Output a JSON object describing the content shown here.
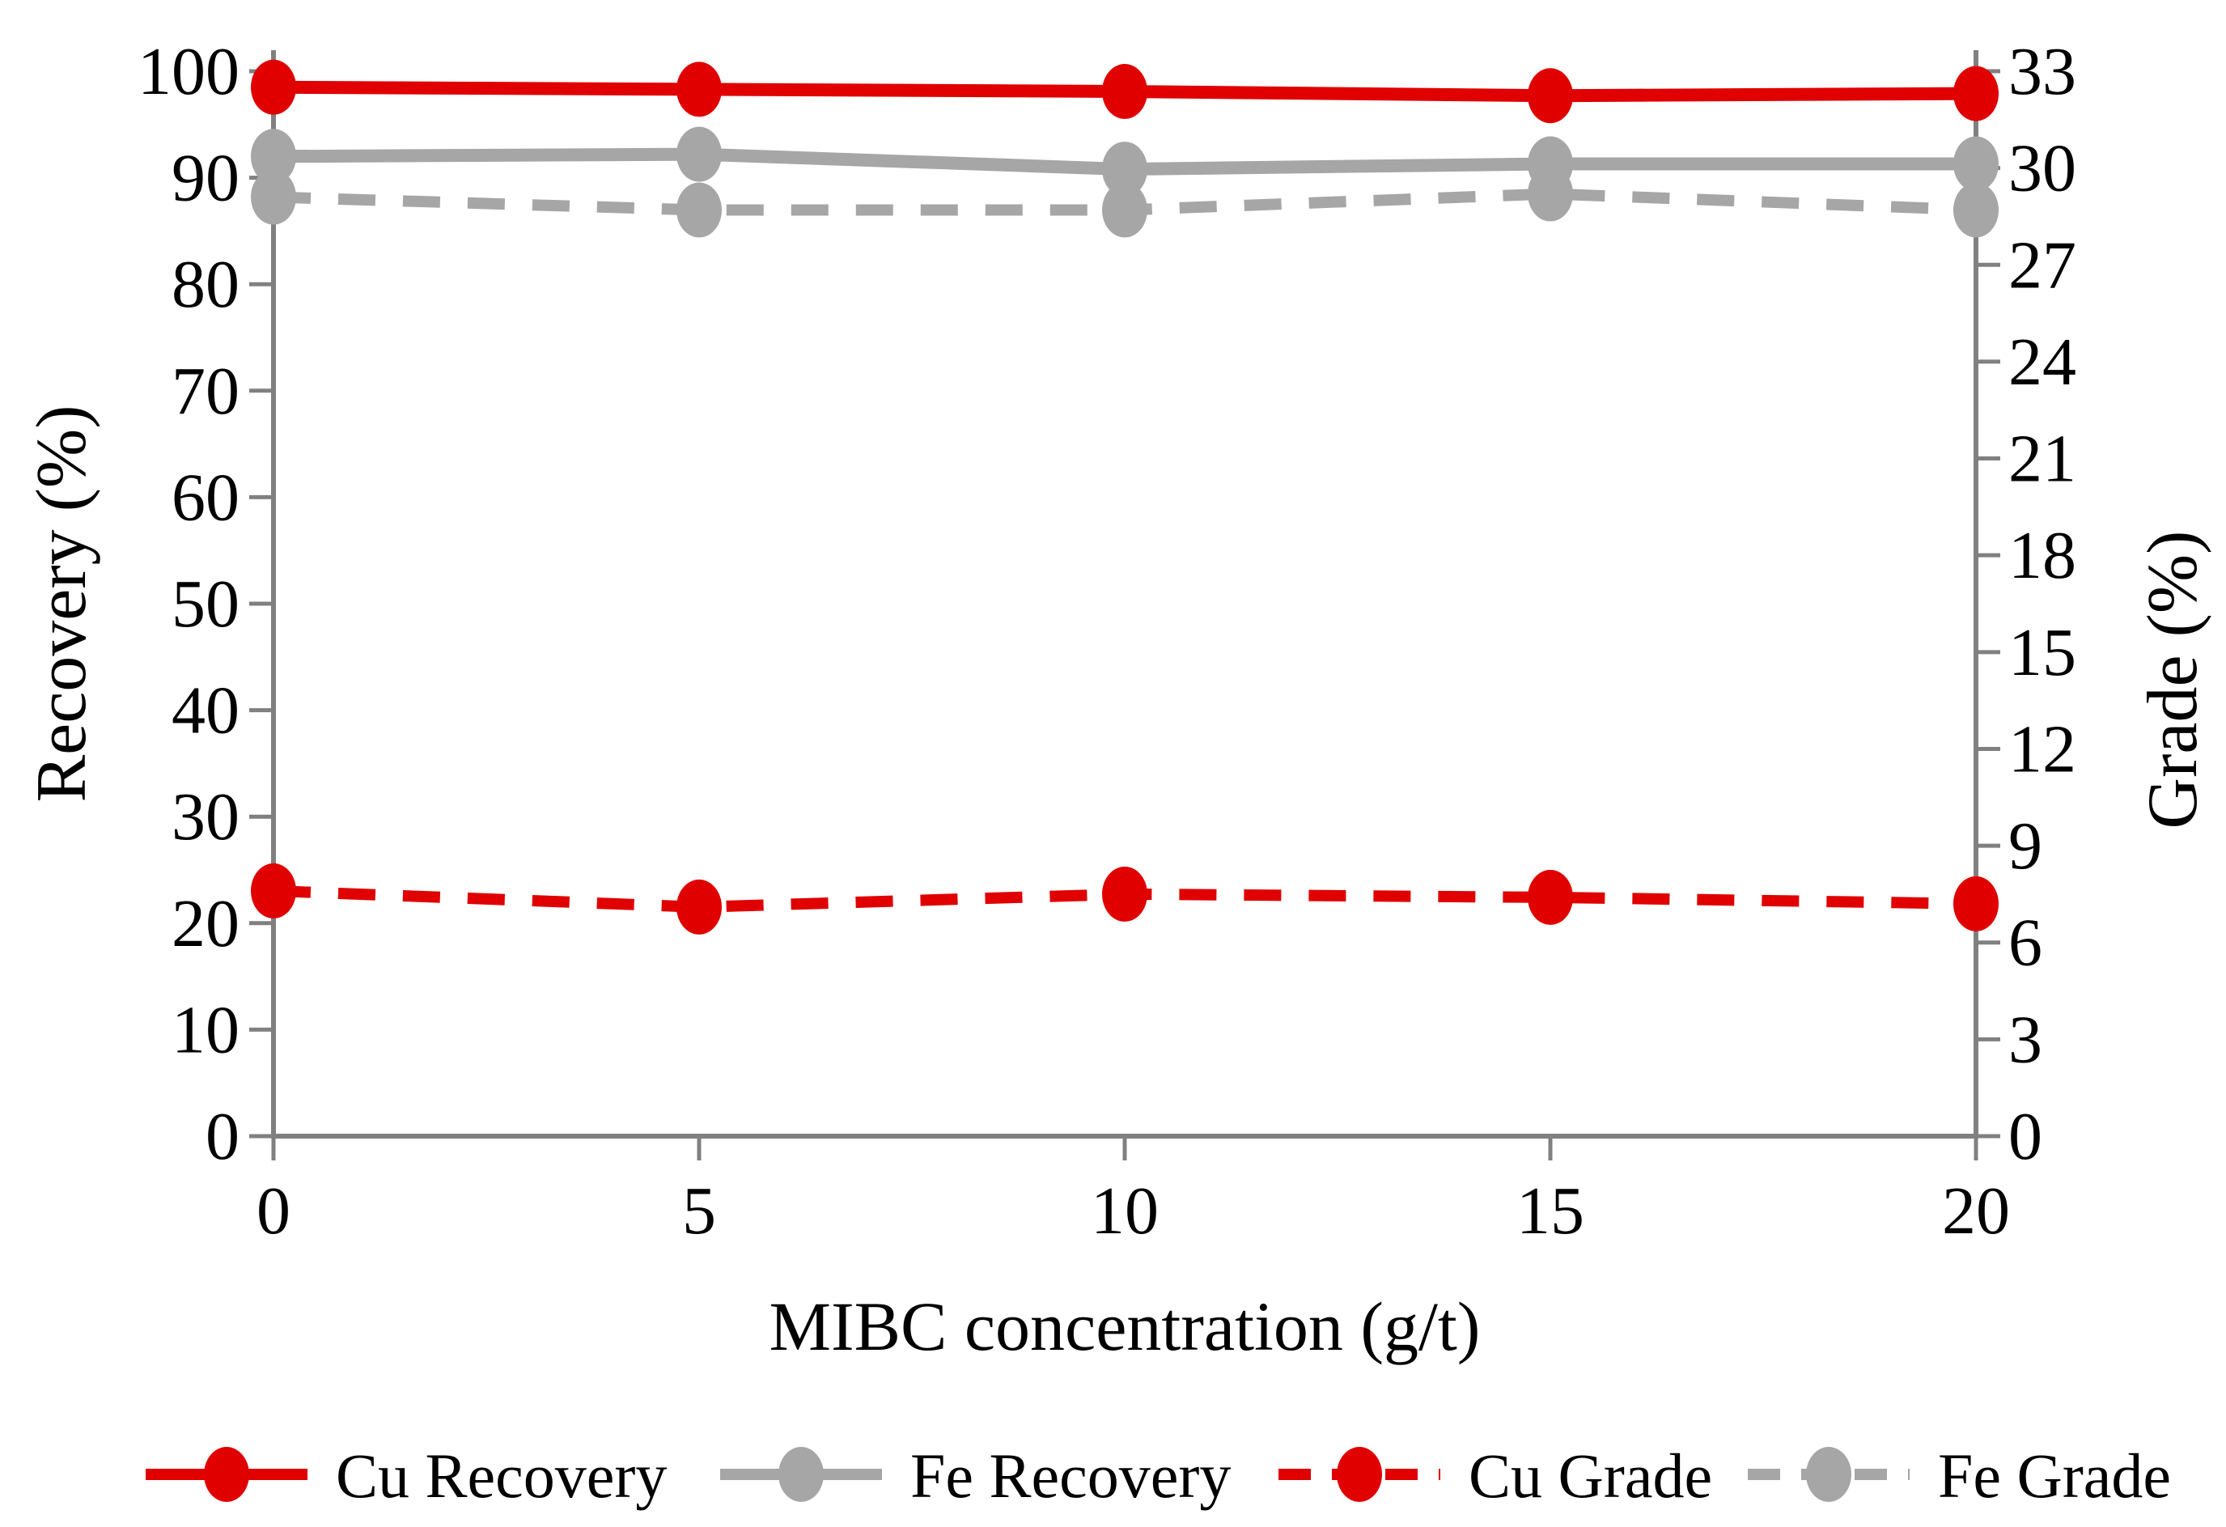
{
  "chart_data": {
    "type": "line",
    "title": "",
    "xlabel": "MIBC concentration (g/t)",
    "x": [
      0,
      5,
      10,
      15,
      20
    ],
    "x_ticks": [
      "0",
      "5",
      "10",
      "15",
      "20"
    ],
    "xlim": [
      0,
      20
    ],
    "left_axis": {
      "label": "Recovery (%)",
      "min": 0,
      "max": 100,
      "ticks": [
        "0",
        "10",
        "20",
        "30",
        "40",
        "50",
        "60",
        "70",
        "80",
        "90",
        "100"
      ]
    },
    "right_axis": {
      "label": "Grade (%)",
      "min": 0,
      "max": 33,
      "ticks": [
        "0",
        "3",
        "6",
        "9",
        "12",
        "15",
        "18",
        "21",
        "24",
        "27",
        "30",
        "33"
      ]
    },
    "grid": false,
    "legend_position": "bottom",
    "series": [
      {
        "name": "Cu Recovery",
        "axis": "left",
        "line": "solid",
        "color": "#e00000",
        "values": [
          98.5,
          98.3,
          98.1,
          97.7,
          97.9
        ]
      },
      {
        "name": "Fe Recovery",
        "axis": "left",
        "line": "solid",
        "color": "#a6a6a6",
        "values": [
          92.0,
          92.2,
          90.8,
          91.3,
          91.3
        ]
      },
      {
        "name": "Cu Grade",
        "axis": "right",
        "line": "dashed",
        "color": "#e00000",
        "values": [
          7.6,
          7.1,
          7.5,
          7.4,
          7.2
        ]
      },
      {
        "name": "Fe Grade",
        "axis": "right",
        "line": "dashed",
        "color": "#a6a6a6",
        "values": [
          29.1,
          28.7,
          28.7,
          29.2,
          28.7
        ]
      }
    ],
    "colors": {
      "axis": "#808080",
      "text": "#000000"
    }
  }
}
